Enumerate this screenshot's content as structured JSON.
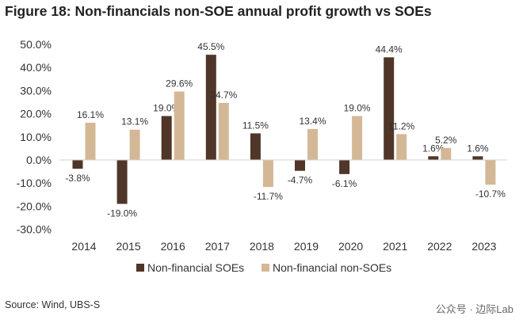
{
  "title": "Figure 18: Non-financials non-SOE annual profit growth vs SOEs",
  "source": "Source: Wind, UBS-S",
  "watermark": "公众号 · 边际Lab",
  "chart_data": {
    "type": "bar",
    "title": "Figure 18: Non-financials non-SOE annual profit growth vs SOEs",
    "categories": [
      "2014",
      "2015",
      "2016",
      "2017",
      "2018",
      "2019",
      "2020",
      "2021",
      "2022",
      "2023"
    ],
    "series": [
      {
        "name": "Non-financial SOEs",
        "color": "#4f3628",
        "values": [
          -3.8,
          -19.0,
          19.0,
          45.5,
          11.5,
          -4.7,
          -6.1,
          44.4,
          1.6,
          1.6
        ]
      },
      {
        "name": "Non-financial non-SOEs",
        "color": "#d4b896",
        "values": [
          16.1,
          13.1,
          29.6,
          24.7,
          -11.7,
          13.4,
          19.0,
          11.2,
          5.2,
          -10.7
        ]
      }
    ],
    "ylim": [
      -30,
      50
    ],
    "yticks": [
      "50.0%",
      "40.0%",
      "30.0%",
      "20.0%",
      "10.0%",
      "0.0%",
      "-10.0%",
      "-20.0%",
      "-30.0%"
    ],
    "unit": "%",
    "grid": false,
    "legend": "bottom"
  }
}
